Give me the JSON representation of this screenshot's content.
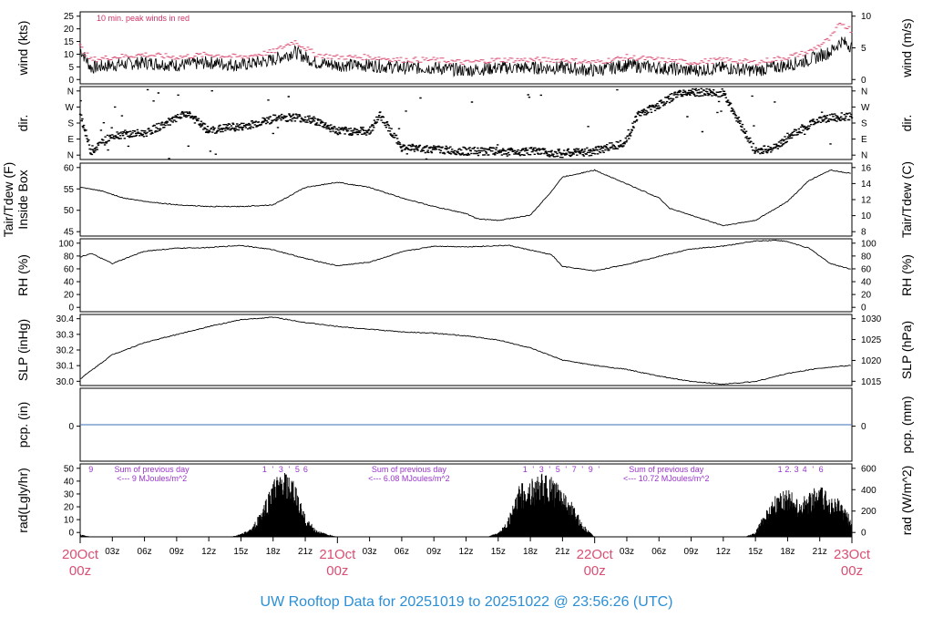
{
  "title": "UW Rooftop Data for 20251019  to  20251022 @ 23:56:26  (UTC)",
  "colors": {
    "peak_wind": "#d94f74",
    "precip_line": "#3a6fb5",
    "purple_text": "#9933cc",
    "title": "#2b8fd6",
    "date_label": "#d94f74"
  },
  "x_axis": {
    "hour_ticks": [
      "03z",
      "06z",
      "09z",
      "12z",
      "15z",
      "18z",
      "21z",
      "03z",
      "06z",
      "09z",
      "12z",
      "15z",
      "18z",
      "21z",
      "03z",
      "06z",
      "09z",
      "12z",
      "15z",
      "18z",
      "21z"
    ],
    "day_labels": [
      {
        "date": "20Oct",
        "hour": "00z"
      },
      {
        "date": "21Oct",
        "hour": "00z"
      },
      {
        "date": "22Oct",
        "hour": "00z"
      },
      {
        "date": "23Oct",
        "hour": "00z"
      }
    ],
    "range_hours": [
      0,
      72
    ]
  },
  "panels": [
    {
      "id": "wind",
      "left_label": "wind (kts)",
      "right_label": "wind (m/s)",
      "left_ticks": [
        "0",
        "5",
        "10",
        "15",
        "20",
        "25"
      ],
      "right_ticks": [
        "0",
        "5",
        "10"
      ],
      "annotation": "10 min. peak winds in red"
    },
    {
      "id": "dir",
      "left_label": "dir.",
      "right_label": "dir.",
      "left_ticks": [
        "N",
        "E",
        "S",
        "W",
        "N"
      ],
      "right_ticks": [
        "N",
        "E",
        "S",
        "W",
        "N"
      ]
    },
    {
      "id": "temp",
      "left_label": "Tair/Tdew (F)",
      "left_label2": "Inside Box",
      "right_label": "Tair/Tdew (C)",
      "left_ticks": [
        "45",
        "50",
        "55",
        "60"
      ],
      "right_ticks": [
        "8",
        "10",
        "12",
        "14",
        "16"
      ]
    },
    {
      "id": "rh",
      "left_label": "RH (%)",
      "right_label": "RH (%)",
      "left_ticks": [
        "0",
        "20",
        "40",
        "60",
        "80",
        "100"
      ],
      "right_ticks": [
        "0",
        "20",
        "40",
        "60",
        "80",
        "100"
      ]
    },
    {
      "id": "slp",
      "left_label": "SLP (inHg)",
      "right_label": "SLP (hPa)",
      "left_ticks": [
        "30.0",
        "30.1",
        "30.2",
        "30.3",
        "30.4"
      ],
      "right_ticks": [
        "1015",
        "1020",
        "1025",
        "1030"
      ]
    },
    {
      "id": "pcp",
      "left_label": "pcp. (in)",
      "right_label": "pcp. (mm)",
      "left_ticks": [
        "0"
      ],
      "right_ticks": [
        "0"
      ]
    },
    {
      "id": "rad",
      "left_label": "rad(Lgly/hr)",
      "right_label": "rad (W/m^2)",
      "left_ticks": [
        "0",
        "10",
        "20",
        "30",
        "40",
        "50"
      ],
      "right_ticks": [
        "0",
        "200",
        "400",
        "600"
      ],
      "sum_label": "Sum of previous day",
      "sums": [
        "<--- 9 MJoules/m^2",
        "<--- 6.08 MJoules/m^2",
        "<--- 10.72 MJoules/m^2"
      ],
      "digit_rows": [
        [
          "9"
        ],
        [
          "1",
          "'",
          "3",
          "'",
          "5",
          "6"
        ],
        [
          "1",
          "'",
          "3",
          "'",
          "5",
          "'",
          "7",
          "'",
          "9",
          "'"
        ],
        [
          "1",
          "2.",
          "3",
          "4",
          "'",
          "6"
        ]
      ]
    }
  ],
  "chart_data": {
    "type": "line",
    "x_units": "hours since 20Oct 00z",
    "series": [
      {
        "name": "wind",
        "ylim": [
          0,
          27
        ],
        "x": [
          0,
          1,
          3,
          6,
          9,
          12,
          15,
          18,
          20,
          22,
          24,
          27,
          30,
          33,
          36,
          39,
          42,
          45,
          48,
          51,
          54,
          57,
          60,
          63,
          66,
          68,
          70,
          71,
          72
        ],
        "values": [
          13,
          6,
          7,
          8,
          7,
          8,
          7,
          9,
          12,
          8,
          7,
          7,
          6,
          6,
          5,
          6,
          6,
          6,
          5,
          7,
          6,
          5,
          6,
          5,
          7,
          9,
          12,
          16,
          14
        ]
      },
      {
        "name": "peak wind",
        "ylim": [
          0,
          27
        ],
        "x": [
          0,
          1,
          3,
          6,
          9,
          12,
          15,
          18,
          20,
          22,
          24,
          27,
          30,
          33,
          36,
          39,
          42,
          45,
          48,
          51,
          54,
          57,
          60,
          63,
          66,
          68,
          70,
          71,
          72
        ],
        "values": [
          14,
          9,
          10,
          11,
          10,
          11,
          10,
          12,
          16,
          11,
          10,
          10,
          9,
          9,
          8,
          9,
          9,
          9,
          8,
          10,
          9,
          8,
          9,
          8,
          10,
          12,
          17,
          23,
          20
        ]
      },
      {
        "name": "dir",
        "ylim": [
          0,
          360
        ],
        "x": [
          0,
          1,
          3,
          6,
          9,
          10,
          12,
          14,
          15,
          18,
          20,
          22,
          24,
          27,
          28,
          30,
          33,
          36,
          39,
          42,
          45,
          48,
          51,
          52,
          54,
          56,
          57,
          58,
          60,
          63,
          65,
          66,
          69,
          72
        ],
        "values": [
          230,
          40,
          120,
          130,
          200,
          230,
          140,
          160,
          160,
          200,
          210,
          190,
          140,
          140,
          220,
          60,
          50,
          40,
          40,
          40,
          30,
          40,
          90,
          220,
          270,
          330,
          330,
          330,
          330,
          40,
          60,
          110,
          200,
          215
        ]
      },
      {
        "name": "Tair",
        "ylim": [
          43,
          64
        ],
        "x": [
          0,
          2,
          4,
          6,
          9,
          12,
          15,
          18,
          21,
          24,
          27,
          30,
          33,
          36,
          37,
          39,
          42,
          44,
          45,
          48,
          51,
          54,
          55,
          57,
          60,
          63,
          66,
          68,
          70,
          72
        ],
        "values": [
          57,
          56,
          54,
          53,
          52,
          51.5,
          51.5,
          52,
          57,
          58.5,
          57,
          54,
          51.5,
          49.5,
          48,
          47.5,
          49,
          56,
          60,
          62,
          58,
          54,
          51,
          49,
          46,
          47.5,
          53,
          59,
          62,
          61
        ]
      },
      {
        "name": "RH",
        "ylim": [
          0,
          100
        ],
        "x": [
          0,
          1,
          3,
          6,
          9,
          12,
          15,
          18,
          21,
          24,
          27,
          30,
          33,
          36,
          40,
          44,
          45,
          48,
          51,
          54,
          57,
          60,
          63,
          65,
          66,
          68,
          70,
          72
        ],
        "values": [
          75,
          80,
          66,
          83,
          87,
          88,
          91,
          85,
          73,
          63,
          68,
          82,
          90,
          89,
          91,
          78,
          62,
          56,
          65,
          76,
          86,
          90,
          97,
          98,
          96,
          87,
          66,
          58
        ]
      },
      {
        "name": "SLP",
        "ylim": [
          29.94,
          30.47
        ],
        "x": [
          0,
          3,
          6,
          9,
          12,
          15,
          18,
          21,
          24,
          27,
          30,
          33,
          36,
          39,
          42,
          45,
          48,
          51,
          54,
          57,
          60,
          63,
          66,
          69,
          72
        ],
        "values": [
          29.99,
          30.17,
          30.26,
          30.32,
          30.38,
          30.43,
          30.45,
          30.41,
          30.38,
          30.36,
          30.34,
          30.33,
          30.31,
          30.28,
          30.22,
          30.13,
          30.09,
          30.06,
          30.01,
          29.97,
          29.95,
          29.97,
          30.03,
          30.07,
          30.09
        ]
      },
      {
        "name": "pcp",
        "ylim": [
          -1,
          1
        ],
        "x": [
          0,
          72
        ],
        "values": [
          0,
          0
        ]
      },
      {
        "name": "rad",
        "ylim": [
          0,
          55
        ],
        "x": [
          0,
          1,
          2,
          14,
          15,
          16,
          17,
          18,
          19,
          20,
          21,
          22,
          23,
          24,
          38,
          39,
          40,
          41,
          42,
          43,
          44,
          45,
          46,
          47,
          48,
          62,
          63,
          64,
          65,
          66,
          67,
          68,
          69,
          70,
          71,
          72
        ],
        "values": [
          2,
          0,
          0,
          0,
          2,
          6,
          20,
          40,
          45,
          38,
          15,
          5,
          2,
          0,
          0,
          3,
          14,
          36,
          40,
          44,
          42,
          35,
          22,
          8,
          0,
          0,
          3,
          20,
          30,
          35,
          25,
          32,
          35,
          30,
          25,
          12
        ]
      }
    ]
  }
}
